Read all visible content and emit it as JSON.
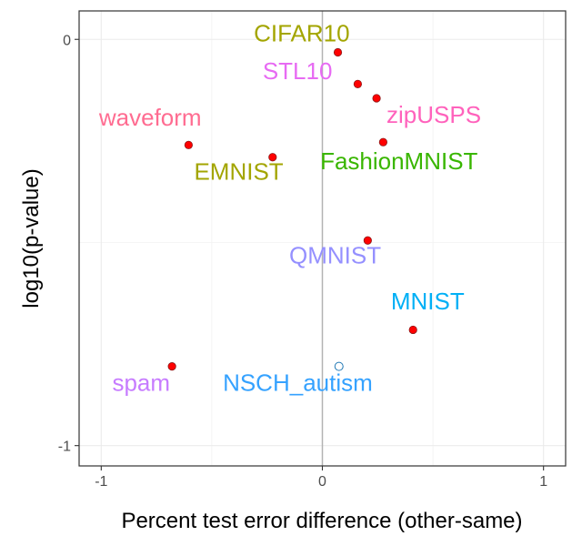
{
  "chart_data": {
    "type": "scatter",
    "title": "",
    "xlabel": "Percent test error difference (other-same)",
    "ylabel": "log10(p-value)",
    "xlim": [
      -1.1,
      1.1
    ],
    "ylim": [
      -1.05,
      0.07
    ],
    "xticks": [
      -1,
      0,
      1
    ],
    "xtick_labels": [
      "-1",
      "0",
      "1"
    ],
    "yticks": [
      -1,
      0
    ],
    "ytick_labels": [
      "-1",
      "0"
    ],
    "grid": true,
    "reference_line_x": 0,
    "points": [
      {
        "label": "CIFAR10",
        "x": 0.07,
        "y": -0.032,
        "filled": true,
        "label_color": "#A3A500",
        "label_x": -0.31,
        "label_y": -0.005
      },
      {
        "label": "STL10",
        "x": 0.16,
        "y": -0.11,
        "filled": true,
        "label_color": "#E76BF3",
        "label_x": -0.27,
        "label_y": -0.098
      },
      {
        "label": "zipUSPS",
        "x": 0.245,
        "y": -0.145,
        "filled": true,
        "label_color": "#FF62BC",
        "label_x": 0.29,
        "label_y": -0.205
      },
      {
        "label": "waveform",
        "x": -0.605,
        "y": -0.26,
        "filled": true,
        "label_color": "#FF6C91",
        "label_x": -1.01,
        "label_y": -0.212
      },
      {
        "label": "EMNIST",
        "x": -0.225,
        "y": -0.29,
        "filled": true,
        "label_color": "#A3A500",
        "label_x": -0.58,
        "label_y": -0.345
      },
      {
        "label": "FashionMNIST",
        "x": 0.275,
        "y": -0.253,
        "filled": true,
        "label_color": "#39B600",
        "label_x": -0.01,
        "label_y": -0.32
      },
      {
        "label": "QMNIST",
        "x": 0.205,
        "y": -0.495,
        "filled": true,
        "label_color": "#9590FF",
        "label_x": -0.15,
        "label_y": -0.552
      },
      {
        "label": "MNIST",
        "x": 0.41,
        "y": -0.715,
        "filled": true,
        "label_color": "#00B0F6",
        "label_x": 0.31,
        "label_y": -0.665
      },
      {
        "label": "spam",
        "x": -0.68,
        "y": -0.805,
        "filled": true,
        "label_color": "#C77CFF",
        "label_x": -0.95,
        "label_y": -0.865
      },
      {
        "label": "NSCH_autism",
        "x": 0.075,
        "y": -0.805,
        "filled": false,
        "label_color": "#35A2FF",
        "label_x": -0.45,
        "label_y": -0.865
      }
    ]
  }
}
